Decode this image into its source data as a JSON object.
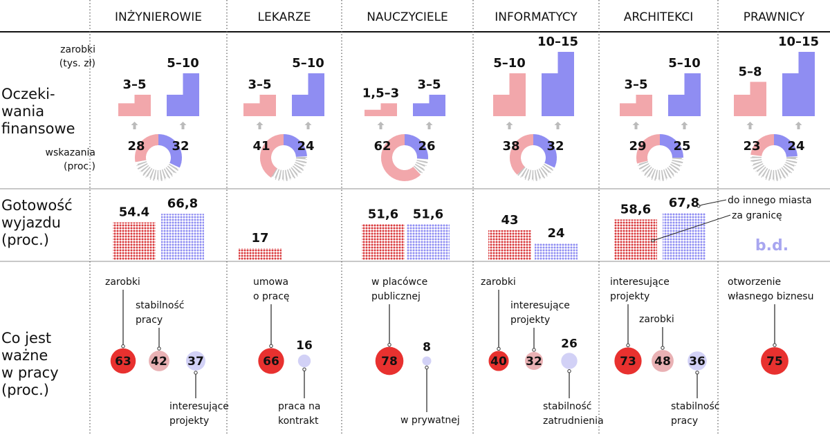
{
  "colors": {
    "salary_current": "#f2a7ab",
    "salary_expected": "#8f8df2",
    "dots_city": "#d9393c",
    "dots_abroad": "#8f8df2",
    "bubble_top": "#e8312f",
    "bubble_second": "#e9b1b4",
    "bubble_third": "#d2d1f6",
    "no_data": "#a8a6f0",
    "arrow": "#bbbbbb"
  },
  "row_labels": {
    "salary_unit_1": "zarobki",
    "salary_unit_2": "(tys. zł)",
    "finance_1": "Oczeki-",
    "finance_2": "wania",
    "finance_3": "finansowe",
    "share_unit_1": "wskazania",
    "share_unit_2": "(proc.)",
    "mobility_1": "Gotowość",
    "mobility_2": "wyjazdu",
    "mobility_3": "(proc.)",
    "important_1": "Co jest",
    "important_2": "ważne",
    "important_3": "w pracy",
    "important_4": "(proc.)"
  },
  "legend": {
    "city": "do innego miasta",
    "abroad": "za granicę"
  },
  "chart_data": {
    "type": "infographic",
    "professions": [
      {
        "name": "INŻYNIEROWIE",
        "salary": [
          {
            "label": "3–5",
            "low": 3,
            "high": 5,
            "share": 28
          },
          {
            "label": "5–10",
            "low": 5,
            "high": 10,
            "share": 32
          }
        ],
        "mobility": {
          "city": 54.4,
          "city_label": "54.4",
          "abroad": 66.8,
          "abroad_label": "66,8"
        },
        "important": [
          {
            "label": "zarobki",
            "value": 63,
            "rank": 1,
            "pos": "top0"
          },
          {
            "label": "stabilność pracy",
            "value": 42,
            "rank": 2,
            "pos": "top1"
          },
          {
            "label": "interesujące projekty",
            "value": 37,
            "rank": 3,
            "pos": "bottom"
          }
        ]
      },
      {
        "name": "LEKARZE",
        "salary": [
          {
            "label": "3–5",
            "low": 3,
            "high": 5,
            "share": 41
          },
          {
            "label": "5–10",
            "low": 5,
            "high": 10,
            "share": 24
          }
        ],
        "mobility": {
          "city": 17,
          "city_label": "17",
          "abroad": null,
          "abroad_label": null
        },
        "important": [
          {
            "label": "umowa o pracę",
            "value": 66,
            "rank": 1,
            "pos": "top0"
          },
          {
            "label": "praca na kontrakt",
            "value": 16,
            "rank": 3,
            "pos": "bottom"
          }
        ]
      },
      {
        "name": "NAUCZYCIELE",
        "salary": [
          {
            "label": "1,5–3",
            "low": 1.5,
            "high": 3,
            "share": 62
          },
          {
            "label": "3–5",
            "low": 3,
            "high": 5,
            "share": 26
          }
        ],
        "mobility": {
          "city": 51.6,
          "city_label": "51,6",
          "abroad": 51.6,
          "abroad_label": "51,6"
        },
        "important": [
          {
            "label": "w placówce publicznej",
            "value": 78,
            "rank": 1,
            "pos": "top0"
          },
          {
            "label": "w prywatnej",
            "value": 8,
            "rank": 3,
            "pos": "bottom"
          }
        ]
      },
      {
        "name": "INFORMATYCY",
        "salary": [
          {
            "label": "5–10",
            "low": 5,
            "high": 10,
            "share": 38
          },
          {
            "label": "10–15",
            "low": 10,
            "high": 15,
            "share": 32
          }
        ],
        "mobility": {
          "city": 43,
          "city_label": "43",
          "abroad": 24,
          "abroad_label": "24"
        },
        "important": [
          {
            "label": "zarobki",
            "value": 40,
            "rank": 1,
            "pos": "top0"
          },
          {
            "label": "interesujące projekty",
            "value": 32,
            "rank": 2,
            "pos": "top1"
          },
          {
            "label": "stabilność zatrudnienia",
            "value": 26,
            "rank": 3,
            "pos": "bottom"
          }
        ]
      },
      {
        "name": "ARCHITEKCI",
        "salary": [
          {
            "label": "3–5",
            "low": 3,
            "high": 5,
            "share": 29
          },
          {
            "label": "5–10",
            "low": 5,
            "high": 10,
            "share": 25
          }
        ],
        "mobility": {
          "city": 58.6,
          "city_label": "58,6",
          "abroad": 67.8,
          "abroad_label": "67,8"
        },
        "important": [
          {
            "label": "interesujące projekty",
            "value": 73,
            "rank": 1,
            "pos": "top0"
          },
          {
            "label": "zarobki",
            "value": 48,
            "rank": 2,
            "pos": "top1"
          },
          {
            "label": "stabilność pracy",
            "value": 36,
            "rank": 3,
            "pos": "bottom"
          }
        ]
      },
      {
        "name": "PRAWNICY",
        "salary": [
          {
            "label": "5–8",
            "low": 5,
            "high": 8,
            "share": 23
          },
          {
            "label": "10–15",
            "low": 10,
            "high": 15,
            "share": 24
          }
        ],
        "mobility": {
          "city": null,
          "abroad": null,
          "no_data_label": "b.d."
        },
        "important": [
          {
            "label": "otworzenie własnego biznesu",
            "value": 75,
            "rank": 1,
            "pos": "top0"
          }
        ]
      }
    ]
  }
}
